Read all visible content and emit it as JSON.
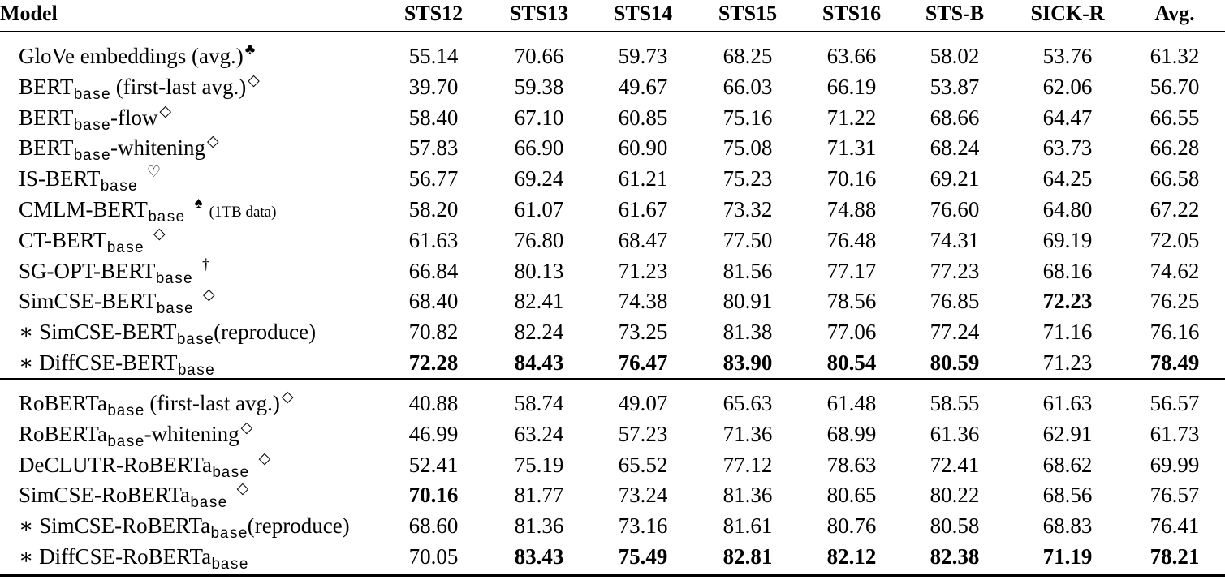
{
  "table": {
    "headers": [
      "Model",
      "STS12",
      "STS13",
      "STS14",
      "STS15",
      "STS16",
      "STS-B",
      "SICK-R",
      "Avg."
    ],
    "groups": [
      {
        "name": "BERT",
        "rows": [
          {
            "prefix": "",
            "name": "GloVe embeddings (avg.)",
            "sub": "",
            "suffix": "",
            "mark": "♣",
            "note": "",
            "values": [
              "55.14",
              "70.66",
              "59.73",
              "68.25",
              "63.66",
              "58.02",
              "53.76",
              "61.32"
            ],
            "bold": []
          },
          {
            "prefix": "",
            "name": "BERT",
            "sub": "base",
            "suffix": " (first-last avg.)",
            "mark": "◇",
            "note": "",
            "values": [
              "39.70",
              "59.38",
              "49.67",
              "66.03",
              "66.19",
              "53.87",
              "62.06",
              "56.70"
            ],
            "bold": []
          },
          {
            "prefix": "",
            "name": "BERT",
            "sub": "base",
            "suffix": "-flow",
            "mark": "◇",
            "note": "",
            "values": [
              "58.40",
              "67.10",
              "60.85",
              "75.16",
              "71.22",
              "68.66",
              "64.47",
              "66.55"
            ],
            "bold": []
          },
          {
            "prefix": "",
            "name": "BERT",
            "sub": "base",
            "suffix": "-whitening",
            "mark": "◇",
            "note": "",
            "values": [
              "57.83",
              "66.90",
              "60.90",
              "75.08",
              "71.31",
              "68.24",
              "63.73",
              "66.28"
            ],
            "bold": []
          },
          {
            "prefix": "",
            "name": "IS-BERT",
            "sub": "base",
            "suffix": "",
            "mark": "♡",
            "note": "",
            "values": [
              "56.77",
              "69.24",
              "61.21",
              "75.23",
              "70.16",
              "69.21",
              "64.25",
              "66.58"
            ],
            "bold": []
          },
          {
            "prefix": "",
            "name": "CMLM-BERT",
            "sub": "base",
            "suffix": "",
            "mark": "♠",
            "note": "(1TB data)",
            "values": [
              "58.20",
              "61.07",
              "61.67",
              "73.32",
              "74.88",
              "76.60",
              "64.80",
              "67.22"
            ],
            "bold": []
          },
          {
            "prefix": "",
            "name": "CT-BERT",
            "sub": "base",
            "suffix": "",
            "mark": "◇",
            "note": "",
            "values": [
              "61.63",
              "76.80",
              "68.47",
              "77.50",
              "76.48",
              "74.31",
              "69.19",
              "72.05"
            ],
            "bold": []
          },
          {
            "prefix": "",
            "name": "SG-OPT-BERT",
            "sub": "base",
            "suffix": "",
            "mark": "†",
            "note": "",
            "values": [
              "66.84",
              "80.13",
              "71.23",
              "81.56",
              "77.17",
              "77.23",
              "68.16",
              "74.62"
            ],
            "bold": []
          },
          {
            "prefix": "",
            "name": "SimCSE-BERT",
            "sub": "base",
            "suffix": "",
            "mark": "◇",
            "note": "",
            "values": [
              "68.40",
              "82.41",
              "74.38",
              "80.91",
              "78.56",
              "76.85",
              "72.23",
              "76.25"
            ],
            "bold": [
              6
            ]
          },
          {
            "prefix": "∗ ",
            "name": "SimCSE-BERT",
            "sub": "base",
            "suffix": "(reproduce)",
            "mark": "",
            "note": "",
            "values": [
              "70.82",
              "82.24",
              "73.25",
              "81.38",
              "77.06",
              "77.24",
              "71.16",
              "76.16"
            ],
            "bold": []
          },
          {
            "prefix": "∗ ",
            "name": "DiffCSE-BERT",
            "sub": "base",
            "suffix": "",
            "mark": "",
            "note": "",
            "values": [
              "72.28",
              "84.43",
              "76.47",
              "83.90",
              "80.54",
              "80.59",
              "71.23",
              "78.49"
            ],
            "bold": [
              0,
              1,
              2,
              3,
              4,
              5,
              7
            ]
          }
        ]
      },
      {
        "name": "RoBERTa",
        "rows": [
          {
            "prefix": "",
            "name": "RoBERTa",
            "sub": "base",
            "suffix": " (first-last avg.)",
            "mark": "◇",
            "note": "",
            "values": [
              "40.88",
              "58.74",
              "49.07",
              "65.63",
              "61.48",
              "58.55",
              "61.63",
              "56.57"
            ],
            "bold": []
          },
          {
            "prefix": "",
            "name": "RoBERTa",
            "sub": "base",
            "suffix": "-whitening",
            "mark": "◇",
            "note": "",
            "values": [
              "46.99",
              "63.24",
              "57.23",
              "71.36",
              "68.99",
              "61.36",
              "62.91",
              "61.73"
            ],
            "bold": []
          },
          {
            "prefix": "",
            "name": "DeCLUTR-RoBERTa",
            "sub": "base",
            "suffix": "",
            "mark": "◇",
            "note": "",
            "values": [
              "52.41",
              "75.19",
              "65.52",
              "77.12",
              "78.63",
              "72.41",
              "68.62",
              "69.99"
            ],
            "bold": []
          },
          {
            "prefix": "",
            "name": "SimCSE-RoBERTa",
            "sub": "base",
            "suffix": "",
            "mark": "◇",
            "note": "",
            "values": [
              "70.16",
              "81.77",
              "73.24",
              "81.36",
              "80.65",
              "80.22",
              "68.56",
              "76.57"
            ],
            "bold": [
              0
            ]
          },
          {
            "prefix": "∗ ",
            "name": "SimCSE-RoBERTa",
            "sub": "base",
            "suffix": "(reproduce)",
            "mark": "",
            "note": "",
            "values": [
              "68.60",
              "81.36",
              "73.16",
              "81.61",
              "80.76",
              "80.58",
              "68.83",
              "76.41"
            ],
            "bold": []
          },
          {
            "prefix": "∗ ",
            "name": "DiffCSE-RoBERTa",
            "sub": "base",
            "suffix": "",
            "mark": "",
            "note": "",
            "values": [
              "70.05",
              "83.43",
              "75.49",
              "82.81",
              "82.12",
              "82.38",
              "71.19",
              "78.21"
            ],
            "bold": [
              1,
              2,
              3,
              4,
              5,
              6,
              7
            ]
          }
        ]
      }
    ]
  }
}
